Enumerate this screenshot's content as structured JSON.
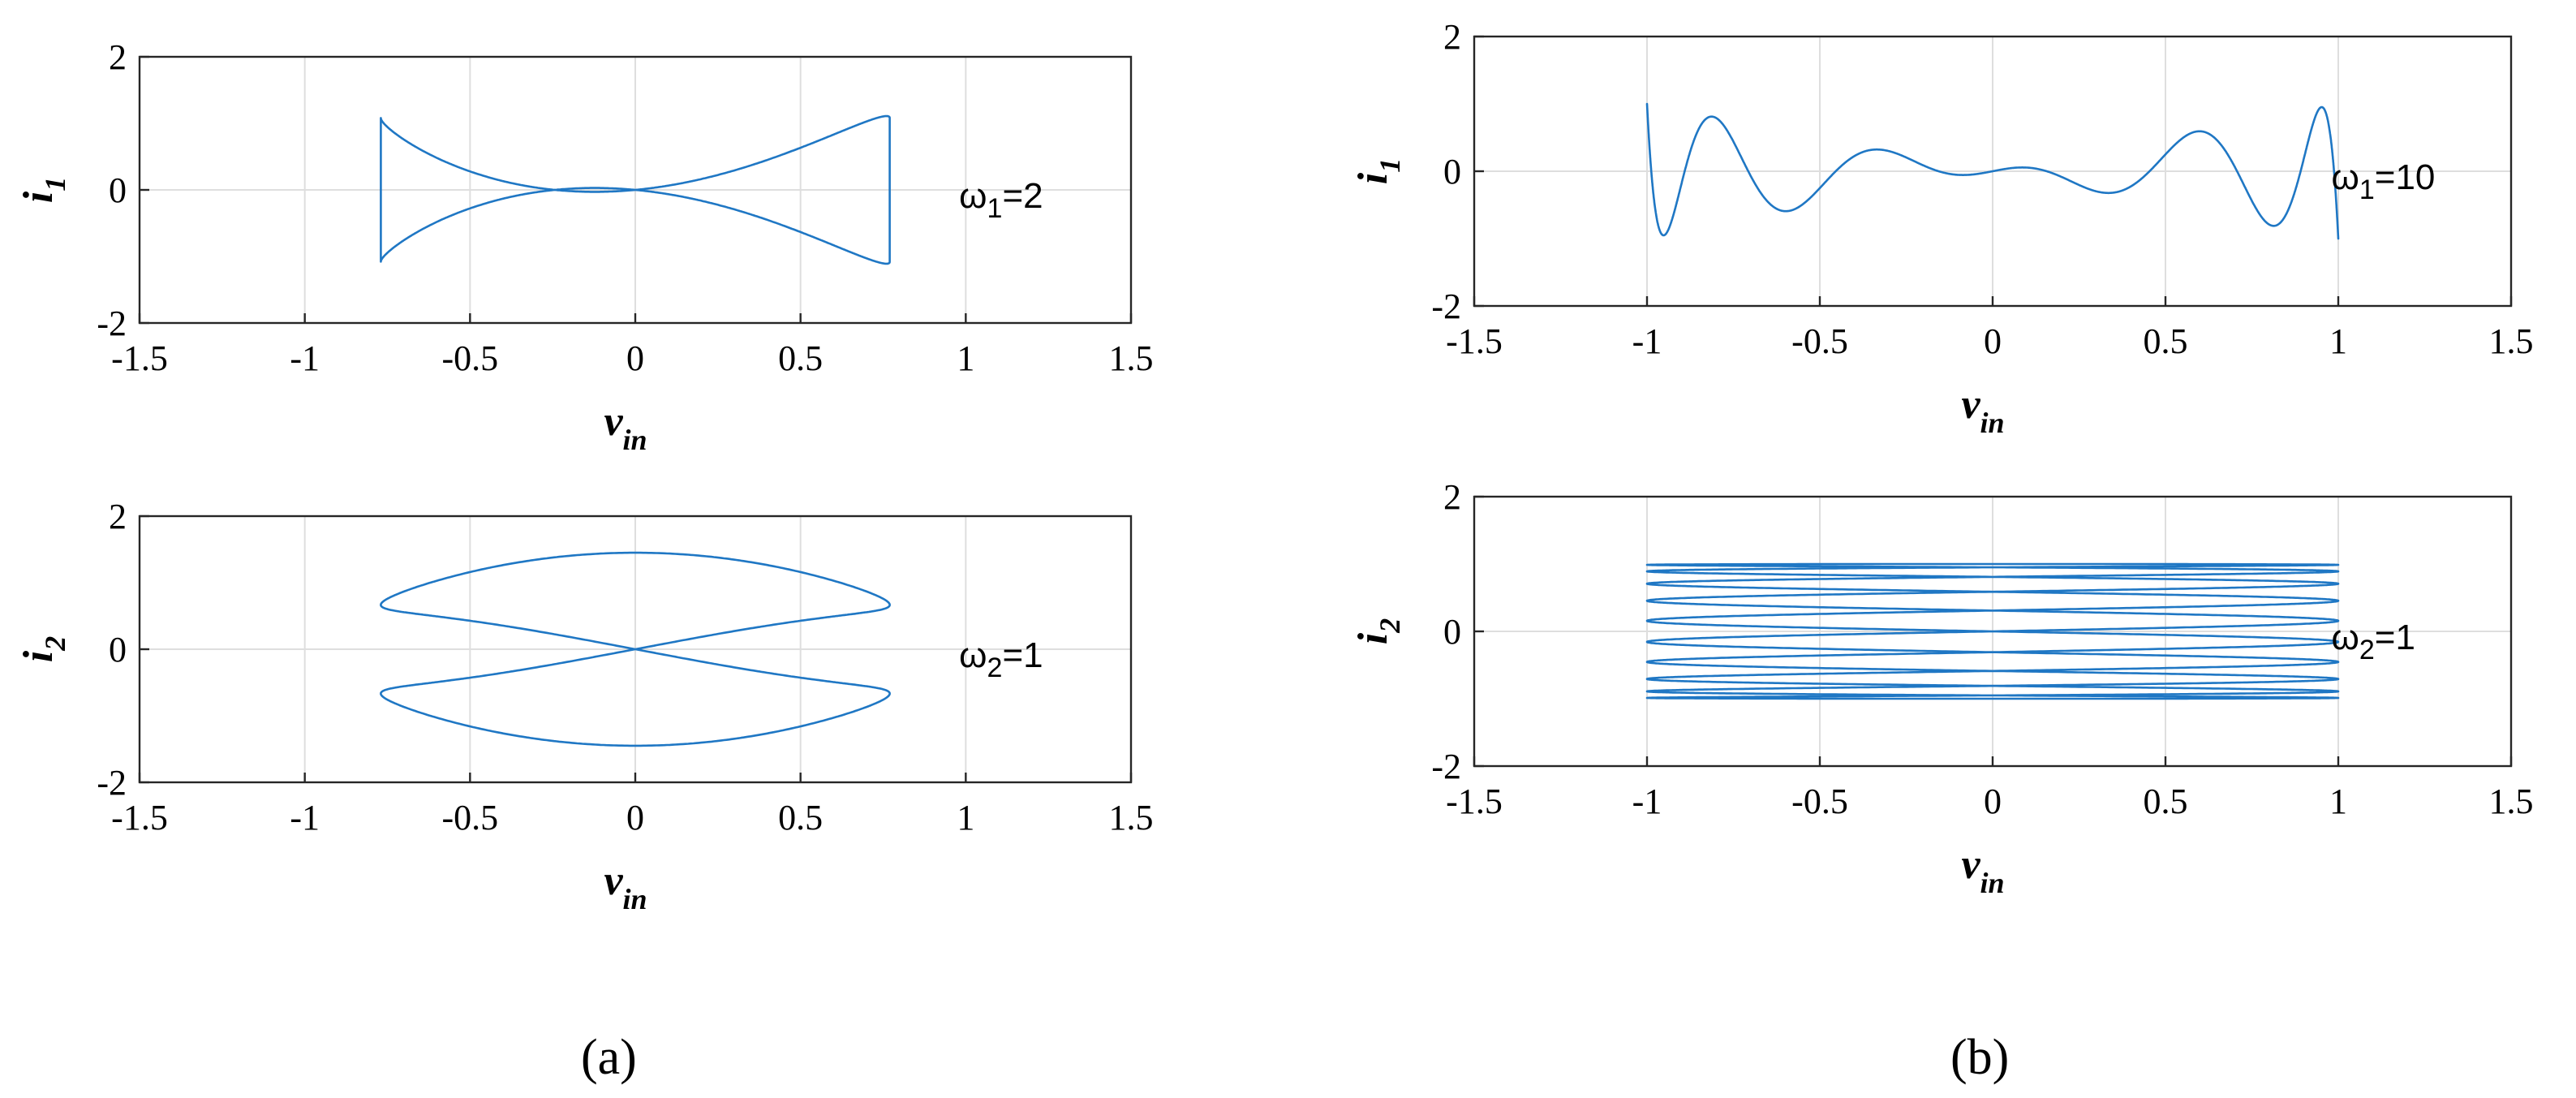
{
  "colors": {
    "line": "#1f77c4",
    "grid": "#dedede",
    "frame": "#262626"
  },
  "panel_labels": {
    "a": "(a)",
    "b": "(b)"
  },
  "chart_data": [
    {
      "type": "line",
      "panel": "a",
      "xlabel": "v_in",
      "ylabel": "i_1",
      "annotation": "ω1=2",
      "xlim": [
        -1.5,
        1.5
      ],
      "ylim": [
        -2,
        2
      ],
      "xticks": [
        "-1.5",
        "-1",
        "-0.5",
        "0",
        "0.5",
        "1",
        "1.5"
      ],
      "yticks": [
        "-2",
        "0",
        "2"
      ],
      "grid": true,
      "curve": {
        "shape": "x-shaped lobes",
        "x_range": [
          -0.77,
          0.77
        ],
        "y_range": [
          -1.08,
          1.08
        ]
      }
    },
    {
      "type": "line",
      "panel": "a",
      "xlabel": "v_in",
      "ylabel": "i_2",
      "annotation": "ω2=1",
      "xlim": [
        -1.5,
        1.5
      ],
      "ylim": [
        -2,
        2
      ],
      "xticks": [
        "-1.5",
        "-1",
        "-0.5",
        "0",
        "0.5",
        "1",
        "1.5"
      ],
      "yticks": [
        "-2",
        "0",
        "2"
      ],
      "grid": true,
      "curve": {
        "shape": "figure-eight",
        "x_range": [
          -0.77,
          0.77
        ],
        "y_range": [
          -1.45,
          1.45
        ]
      }
    },
    {
      "type": "line",
      "panel": "b",
      "xlabel": "v_in",
      "ylabel": "i_1",
      "annotation": "ω1=10",
      "xlim": [
        -1.5,
        1.5
      ],
      "ylim": [
        -2,
        2
      ],
      "xticks": [
        "-1.5",
        "-1",
        "-0.5",
        "0",
        "0.5",
        "1",
        "1.5"
      ],
      "yticks": [
        "-2",
        "0",
        "2"
      ],
      "grid": true,
      "curve": {
        "shape": "multi-petal rosette",
        "x_range": [
          -1,
          1
        ],
        "y_range": [
          -1,
          1
        ]
      }
    },
    {
      "type": "line",
      "panel": "b",
      "xlabel": "v_in",
      "ylabel": "i_2",
      "annotation": "ω2=1",
      "xlim": [
        -1.5,
        1.5
      ],
      "ylim": [
        -2,
        2
      ],
      "xticks": [
        "-1.5",
        "-1",
        "-0.5",
        "0",
        "0.5",
        "1",
        "1.5"
      ],
      "yticks": [
        "-2",
        "0",
        "2"
      ],
      "grid": true,
      "curve": {
        "shape": "stacked horizontal loops",
        "x_range": [
          -1,
          1
        ],
        "y_range": [
          -1,
          1
        ]
      }
    }
  ]
}
